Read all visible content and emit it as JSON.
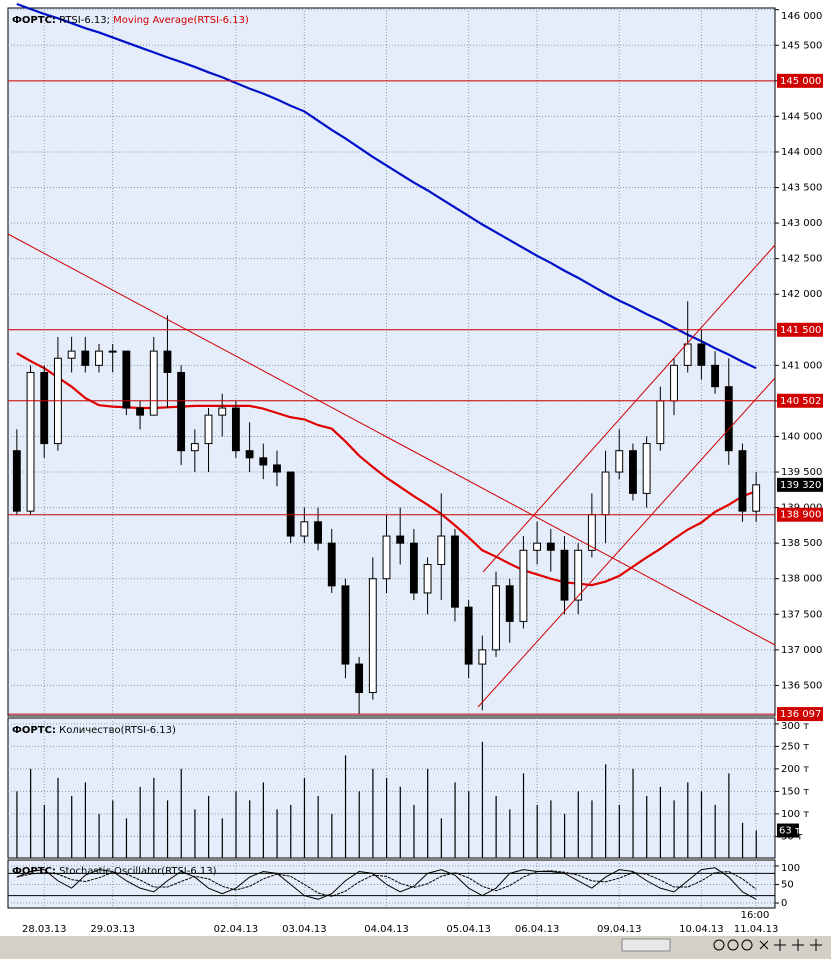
{
  "chart_data": [
    {
      "type": "candlestick",
      "title_prefix": "ФОРТС:",
      "title_symbol": "RTSI-6.13;",
      "categories": [
        null,
        null,
        "28.03.13",
        null,
        null,
        null,
        null,
        "29.03.13",
        null,
        null,
        null,
        null,
        null,
        null,
        null,
        null,
        "02.04.13",
        null,
        null,
        null,
        null,
        "03.04.13",
        null,
        null,
        null,
        null,
        null,
        "04.04.13",
        null,
        null,
        null,
        null,
        null,
        "05.04.13",
        null,
        null,
        null,
        null,
        "06.04.13",
        null,
        null,
        null,
        null,
        null,
        "09.04.13",
        null,
        null,
        null,
        null,
        null,
        "10.04.13",
        null,
        null,
        null,
        "11.04.13"
      ],
      "x_note": "16:00",
      "ohlc": [
        [
          139800,
          140100,
          138900,
          138950
        ],
        [
          138950,
          141000,
          138900,
          140900
        ],
        [
          140900,
          141000,
          139700,
          139900
        ],
        [
          139900,
          141400,
          139800,
          141100
        ],
        [
          141100,
          141400,
          140900,
          141200
        ],
        [
          141200,
          141400,
          140900,
          141000
        ],
        [
          141000,
          141300,
          140900,
          141200
        ],
        [
          141200,
          141300,
          140900,
          141200
        ],
        [
          141200,
          141200,
          140300,
          140400
        ],
        [
          140400,
          140500,
          140100,
          140300
        ],
        [
          140300,
          141400,
          140300,
          141200
        ],
        [
          141200,
          141700,
          140400,
          140900
        ],
        [
          140900,
          141000,
          139600,
          139800
        ],
        [
          139800,
          140100,
          139500,
          139900
        ],
        [
          139900,
          140400,
          139500,
          140300
        ],
        [
          140300,
          140600,
          140000,
          140400
        ],
        [
          140400,
          140500,
          139700,
          139800
        ],
        [
          139800,
          140200,
          139500,
          139700
        ],
        [
          139700,
          139900,
          139400,
          139600
        ],
        [
          139600,
          139800,
          139300,
          139500
        ],
        [
          139500,
          139500,
          138500,
          138600
        ],
        [
          138600,
          139000,
          138500,
          138800
        ],
        [
          138800,
          139000,
          138400,
          138500
        ],
        [
          138500,
          138700,
          137800,
          137900
        ],
        [
          137900,
          138000,
          136600,
          136800
        ],
        [
          136800,
          136900,
          136100,
          136400
        ],
        [
          136400,
          138300,
          136300,
          138000
        ],
        [
          138000,
          138900,
          137800,
          138600
        ],
        [
          138600,
          139000,
          138200,
          138500
        ],
        [
          138500,
          138700,
          137700,
          137800
        ],
        [
          137800,
          138300,
          137500,
          138200
        ],
        [
          138200,
          139200,
          137700,
          138600
        ],
        [
          138600,
          138700,
          137400,
          137600
        ],
        [
          137600,
          137700,
          136600,
          136800
        ],
        [
          136800,
          137200,
          136150,
          137000
        ],
        [
          137000,
          138100,
          136900,
          137900
        ],
        [
          137900,
          138000,
          137100,
          137400
        ],
        [
          137400,
          138600,
          137300,
          138400
        ],
        [
          138400,
          138800,
          138200,
          138500
        ],
        [
          138500,
          138700,
          138100,
          138400
        ],
        [
          138400,
          138600,
          137500,
          137700
        ],
        [
          137700,
          138500,
          137500,
          138400
        ],
        [
          138400,
          139200,
          138300,
          138900
        ],
        [
          138900,
          139800,
          138500,
          139500
        ],
        [
          139500,
          140100,
          139400,
          139800
        ],
        [
          139800,
          139900,
          139100,
          139200
        ],
        [
          139200,
          140000,
          139000,
          139900
        ],
        [
          139900,
          140700,
          139800,
          140500
        ],
        [
          140500,
          141100,
          140300,
          141000
        ],
        [
          141000,
          141900,
          140900,
          141300
        ],
        [
          141300,
          141500,
          140800,
          141000
        ],
        [
          141000,
          141200,
          140600,
          140700
        ],
        [
          140700,
          141100,
          139600,
          139800
        ],
        [
          139800,
          139900,
          138800,
          138950
        ],
        [
          138950,
          139500,
          138800,
          139320
        ]
      ],
      "moving_averages": [
        {
          "name": "Moving Average(RTSI-6.13)",
          "color": "#e00000",
          "values": [
            141170,
            141060,
            140960,
            140830,
            140700,
            140540,
            140440,
            140420,
            140410,
            140400,
            140400,
            140410,
            140420,
            140430,
            140430,
            140430,
            140430,
            140430,
            140390,
            140330,
            140270,
            140240,
            140160,
            140110,
            139930,
            139730,
            139570,
            139420,
            139290,
            139160,
            139040,
            138910,
            138750,
            138580,
            138400,
            138310,
            138210,
            138120,
            138060,
            138000,
            137950,
            137930,
            137910,
            137960,
            138040,
            138170,
            138300,
            138420,
            138560,
            138690,
            138790,
            138940,
            139040,
            139160,
            139230
          ]
        },
        {
          "color": "#0010c8",
          "values": [
            146080,
            146010,
            145940,
            145880,
            145810,
            145740,
            145680,
            145610,
            145540,
            145470,
            145400,
            145330,
            145265,
            145195,
            145120,
            145050,
            144970,
            144890,
            144820,
            144740,
            144650,
            144570,
            144440,
            144310,
            144190,
            144060,
            143930,
            143810,
            143690,
            143570,
            143460,
            143340,
            143220,
            143100,
            142980,
            142870,
            142760,
            142650,
            142540,
            142440,
            142330,
            142230,
            142120,
            142010,
            141910,
            141820,
            141720,
            141630,
            141530,
            141430,
            141340,
            141240,
            141150,
            141050,
            140960
          ]
        }
      ],
      "ylim": [
        136070,
        146024
      ],
      "yticks": [
        {
          "value": 136500,
          "label": "136 500"
        },
        {
          "value": 137000,
          "label": "137 000"
        },
        {
          "value": 137500,
          "label": "137 500"
        },
        {
          "value": 138000,
          "label": "138 000"
        },
        {
          "value": 138500,
          "label": "138 500"
        },
        {
          "value": 139000,
          "label": "139 000"
        },
        {
          "value": 139500,
          "label": "139 500"
        },
        {
          "value": 140000,
          "label": "140 000"
        },
        {
          "value": 140500,
          "label": "140 500"
        },
        {
          "value": 141000,
          "label": "141 000"
        },
        {
          "value": 141500,
          "label": "141 500"
        },
        {
          "value": 142000,
          "label": "142 000"
        },
        {
          "value": 142500,
          "label": "142 500"
        },
        {
          "value": 143000,
          "label": "143 000"
        },
        {
          "value": 143500,
          "label": "143 500"
        },
        {
          "value": 144000,
          "label": "144 000"
        },
        {
          "value": 144500,
          "label": "144 500"
        },
        {
          "value": 145000,
          "label": "145 000"
        },
        {
          "value": 145500,
          "label": "145 500"
        },
        {
          "value": 146000,
          "label": "146 000"
        }
      ],
      "levels": [
        {
          "value": 145000,
          "label": "145 000"
        },
        {
          "value": 141500,
          "label": "141 500"
        },
        {
          "value": 140502,
          "label": "140 502"
        },
        {
          "value": 138900,
          "label": "138 900"
        },
        {
          "value": 136097,
          "label": "136 097"
        }
      ],
      "level_color": "#d00000",
      "last": {
        "value": 139320,
        "label": "139 320"
      },
      "grid": true
    },
    {
      "type": "bar",
      "title_prefix": "ФОРТС:",
      "title": "Количество(RTSI-6.13)",
      "color": "#000000",
      "values": [
        150,
        200,
        120,
        180,
        140,
        170,
        100,
        130,
        90,
        160,
        180,
        130,
        200,
        110,
        140,
        90,
        150,
        130,
        170,
        110,
        120,
        180,
        140,
        100,
        230,
        150,
        200,
        180,
        160,
        120,
        200,
        90,
        170,
        150,
        260,
        140,
        110,
        190,
        120,
        130,
        100,
        150,
        130,
        210,
        120,
        200,
        140,
        160,
        130,
        170,
        150,
        120,
        190,
        80,
        63
      ],
      "ylim": [
        2,
        313
      ],
      "yticks": [
        {
          "value": 50,
          "label": "50 т"
        },
        {
          "value": 100,
          "label": "100 т"
        },
        {
          "value": 150,
          "label": "150 т"
        },
        {
          "value": 200,
          "label": "200 т"
        },
        {
          "value": 250,
          "label": "250 т"
        },
        {
          "value": 300,
          "label": "300 т"
        }
      ],
      "last": {
        "value": 63,
        "label": "63 т"
      },
      "grid": true
    },
    {
      "type": "line",
      "title_prefix": "ФОРТС:",
      "title": "Stochastic Oscillator(RTSI-6.13)",
      "series": [
        {
          "color": "#000000",
          "values": [
            70,
            85,
            90,
            60,
            40,
            75,
            90,
            85,
            60,
            40,
            30,
            60,
            85,
            70,
            40,
            25,
            40,
            70,
            85,
            80,
            50,
            20,
            10,
            25,
            60,
            85,
            80,
            50,
            30,
            45,
            80,
            90,
            75,
            40,
            20,
            40,
            80,
            90,
            85,
            85,
            80,
            60,
            40,
            70,
            90,
            85,
            60,
            40,
            30,
            60,
            90,
            95,
            70,
            30,
            10
          ]
        },
        {
          "color": "#000000",
          "values": [
            70,
            78,
            82,
            78,
            63,
            58,
            68,
            83,
            78,
            62,
            43,
            43,
            58,
            72,
            65,
            45,
            35,
            45,
            65,
            78,
            72,
            50,
            27,
            18,
            32,
            57,
            75,
            72,
            53,
            42,
            52,
            72,
            82,
            68,
            45,
            33,
            47,
            70,
            85,
            87,
            83,
            75,
            60,
            57,
            67,
            82,
            78,
            62,
            43,
            43,
            60,
            82,
            85,
            65,
            37
          ]
        }
      ],
      "levels": [
        80,
        20
      ],
      "ylim": [
        -13.5,
        116
      ],
      "yticks": [
        0,
        50,
        100
      ],
      "grid": true
    }
  ]
}
